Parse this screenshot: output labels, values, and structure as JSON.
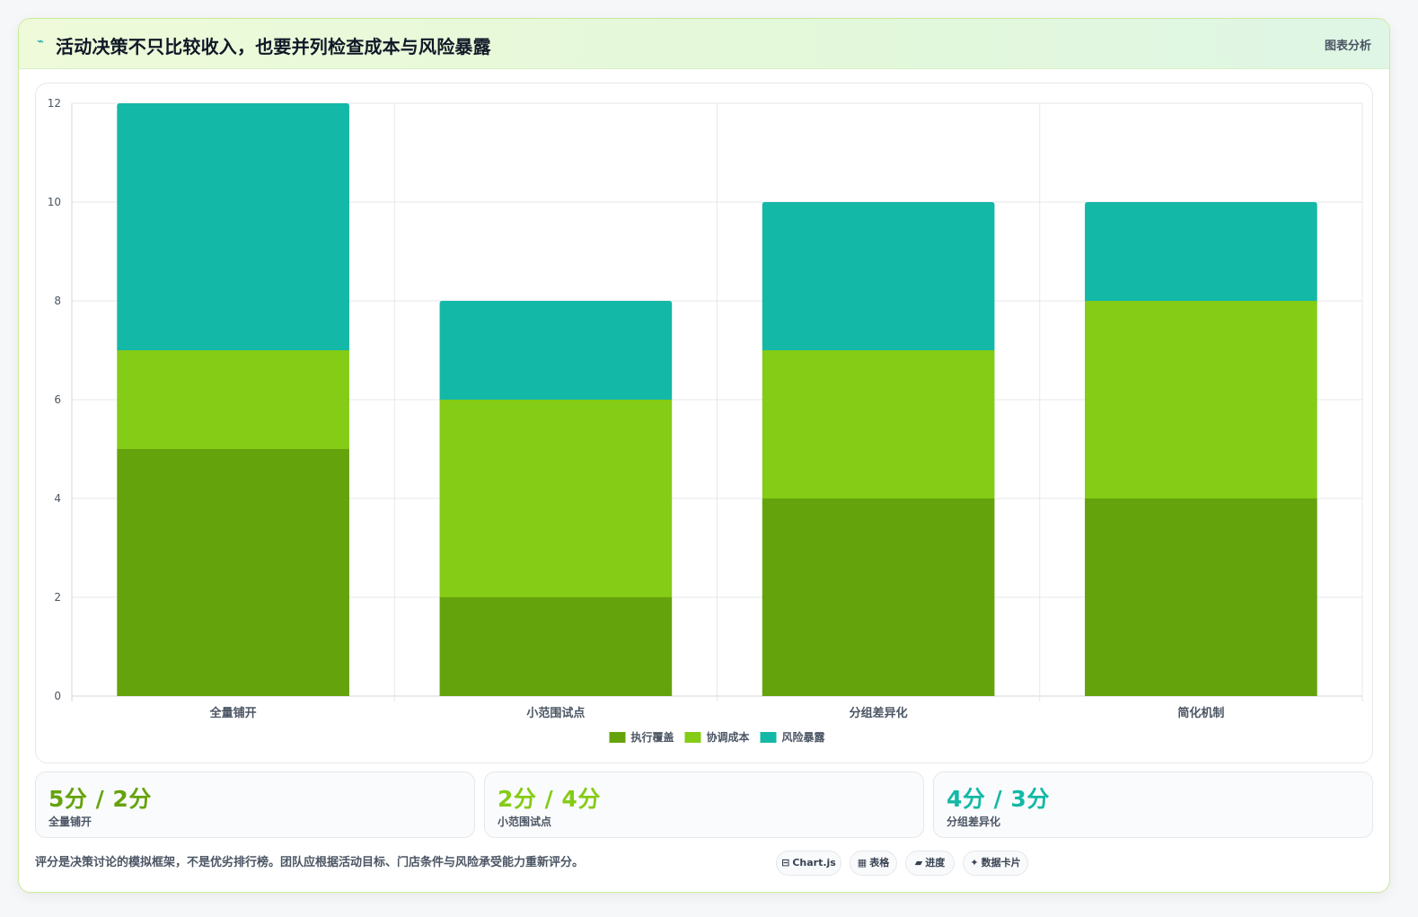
{
  "header": {
    "icon": "trend-line-icon",
    "icon_glyph": "⌁",
    "title": "活动决策不只比较收入，也要并列检查成本与风险暴露",
    "tag": "图表分析"
  },
  "colors": {
    "series1": "#65a30d",
    "series2": "#84cc16",
    "series3": "#14b8a6"
  },
  "chart_data": {
    "type": "bar",
    "stacked": true,
    "categories": [
      "全量铺开",
      "小范围试点",
      "分组差异化",
      "简化机制"
    ],
    "series": [
      {
        "name": "执行覆盖",
        "values": [
          5,
          2,
          4,
          4
        ],
        "color": "#65a30d"
      },
      {
        "name": "协调成本",
        "values": [
          2,
          4,
          3,
          4
        ],
        "color": "#84cc16"
      },
      {
        "name": "风险暴露",
        "values": [
          5,
          2,
          3,
          2
        ],
        "color": "#14b8a6"
      }
    ],
    "ylim": [
      0,
      12
    ],
    "yticks": [
      0,
      2,
      4,
      6,
      8,
      10,
      12
    ],
    "grid": true,
    "legend_position": "bottom"
  },
  "stats": [
    {
      "value": "5分 / 2分",
      "label": "全量铺开",
      "color": "#65a30d"
    },
    {
      "value": "2分 / 4分",
      "label": "小范围试点",
      "color": "#84cc16"
    },
    {
      "value": "4分 / 3分",
      "label": "分组差异化",
      "color": "#14b8a6"
    }
  ],
  "footnote": "评分是决策讨论的模拟框架，不是优劣排行榜。团队应根据活动目标、门店条件与风险承受能力重新评分。",
  "chips": [
    {
      "icon": "⊟",
      "label": "Chart.js"
    },
    {
      "icon": "▦",
      "label": "表格"
    },
    {
      "icon": "▰",
      "label": "进度"
    },
    {
      "icon": "✦",
      "label": "数据卡片"
    }
  ]
}
